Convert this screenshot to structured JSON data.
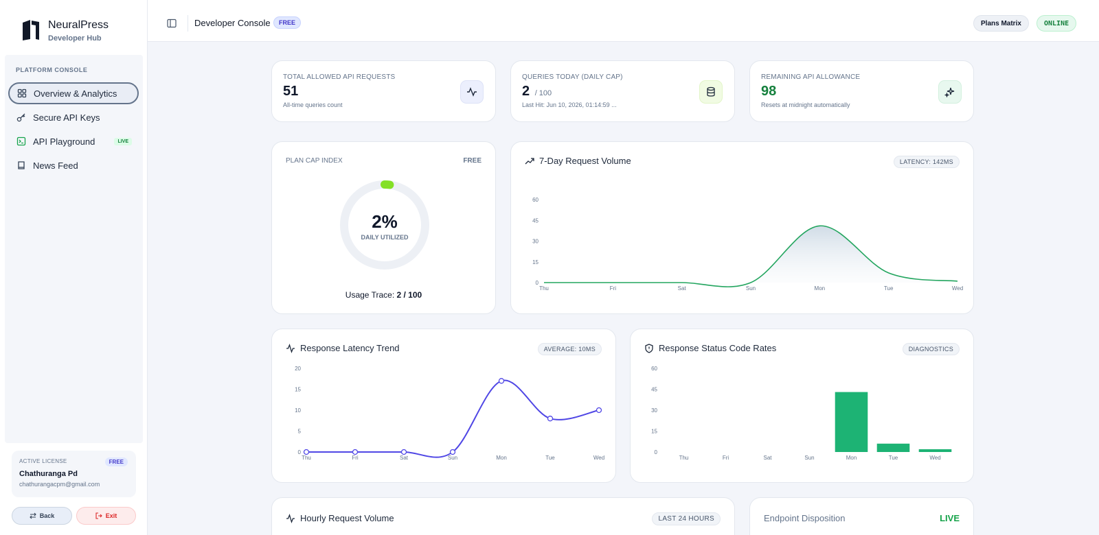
{
  "sidebar": {
    "brand_name": "NeuralPress",
    "brand_sub": "Developer Hub",
    "section_label": "PLATFORM CONSOLE",
    "items": [
      {
        "label": "Overview & Analytics"
      },
      {
        "label": "Secure API Keys"
      },
      {
        "label": "API Playground",
        "badge": "LIVE"
      },
      {
        "label": "News Feed"
      }
    ],
    "license": {
      "label": "ACTIVE LICENSE",
      "badge": "FREE",
      "name": "Chathuranga Pd",
      "email": "chathurangacpm@gmail.com"
    },
    "back_label": "Back",
    "exit_label": "Exit"
  },
  "header": {
    "title": "Developer Console",
    "plan_badge": "FREE",
    "plans_button": "Plans Matrix",
    "status": "ONLINE"
  },
  "stats": [
    {
      "label": "TOTAL ALLOWED API REQUESTS",
      "value": "51",
      "suffix": "",
      "sub": "All-time queries count",
      "icon": "activity-icon"
    },
    {
      "label": "QUERIES TODAY (DAILY CAP)",
      "value": "2",
      "suffix": "/ 100",
      "sub": "Last Hit: Jun 10, 2026, 01:14:59 ...",
      "icon": "database-icon"
    },
    {
      "label": "REMAINING API ALLOWANCE",
      "value": "98",
      "suffix": "",
      "sub": "Resets at midnight automatically",
      "icon": "sparkles-icon"
    }
  ],
  "colors": {
    "accent_green": "#16a34a",
    "remaining_value": "#15803d",
    "latency_line": "#4f46e5",
    "volume_line": "#22a55e",
    "bars": "#1db374",
    "gauge": "#84e026"
  },
  "plan_cap": {
    "label": "PLAN CAP INDEX",
    "plan": "FREE",
    "percent_text": "2%",
    "percent": 2,
    "gauge_caption": "DAILY UTILIZED",
    "usage_label": "Usage Trace:",
    "usage_value": "2 / 100"
  },
  "volume_chart": {
    "title": "7-Day Request Volume",
    "badge": "LATENCY: 142MS"
  },
  "latency_chart": {
    "title": "Response Latency Trend",
    "badge": "AVERAGE: 10MS"
  },
  "status_chart": {
    "title": "Response Status Code Rates",
    "badge": "DIAGNOSTICS"
  },
  "hourly": {
    "title": "Hourly Request Volume",
    "badge": "LAST 24 HOURS"
  },
  "endpoint": {
    "title": "Endpoint Disposition",
    "status": "LIVE"
  },
  "chart_data": [
    {
      "type": "area",
      "title": "7-Day Request Volume",
      "categories": [
        "Thu",
        "Fri",
        "Sat",
        "Sun",
        "Mon",
        "Tue",
        "Wed"
      ],
      "values": [
        0,
        0,
        0,
        0,
        41,
        7,
        1
      ],
      "yticks": [
        0,
        15,
        30,
        45,
        60
      ],
      "ylim": [
        0,
        60
      ],
      "grid": false
    },
    {
      "type": "line",
      "title": "Response Latency Trend",
      "categories": [
        "Thu",
        "Fri",
        "Sat",
        "Sun",
        "Mon",
        "Tue",
        "Wed"
      ],
      "values": [
        0,
        0,
        0,
        0,
        17,
        8,
        10
      ],
      "yticks": [
        0,
        5,
        10,
        15,
        20
      ],
      "ylim": [
        0,
        20
      ],
      "grid": false
    },
    {
      "type": "bar",
      "title": "Response Status Code Rates",
      "categories": [
        "Thu",
        "Fri",
        "Sat",
        "Sun",
        "Mon",
        "Tue",
        "Wed"
      ],
      "values": [
        0,
        0,
        0,
        0,
        43,
        6,
        2
      ],
      "yticks": [
        0,
        15,
        30,
        45,
        60
      ],
      "ylim": [
        0,
        60
      ],
      "grid": false
    }
  ]
}
